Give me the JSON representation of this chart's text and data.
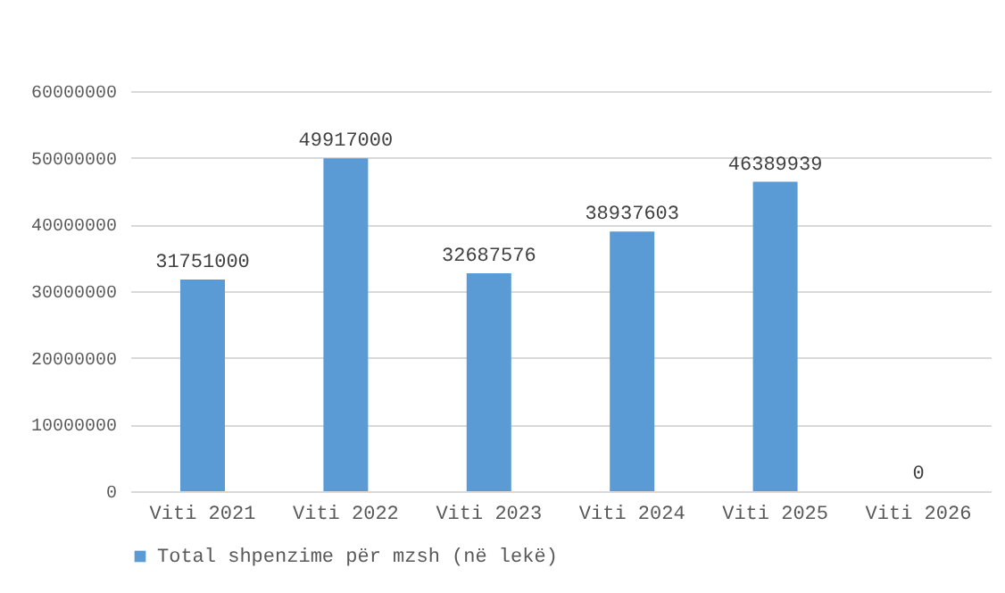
{
  "chart_data": {
    "type": "bar",
    "categories": [
      "Viti 2021",
      "Viti 2022",
      "Viti 2023",
      "Viti 2024",
      "Viti 2025",
      "Viti 2026"
    ],
    "series": [
      {
        "name": "Total shpenzime për mzsh (në lekë)",
        "color": "#5b9bd5",
        "values": [
          31751000,
          49917000,
          32687576,
          38937603,
          46389939,
          0
        ]
      }
    ],
    "ylim": [
      0,
      60000000
    ],
    "yticks": [
      0,
      10000000,
      20000000,
      30000000,
      40000000,
      50000000,
      60000000
    ],
    "grid": "y",
    "legend": "bottom",
    "data_labels": true
  }
}
